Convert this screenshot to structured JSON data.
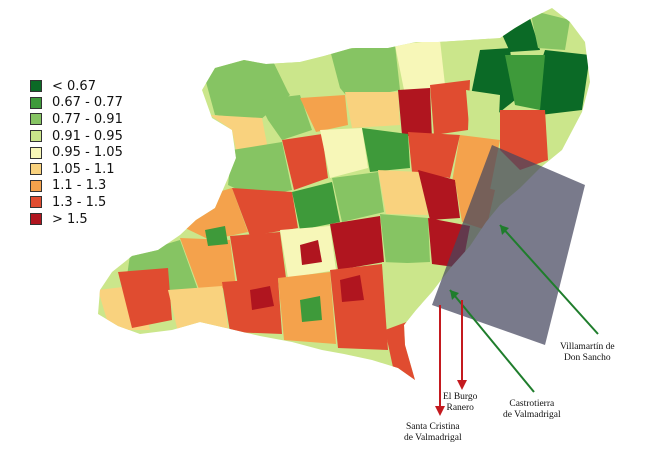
{
  "legend": {
    "items": [
      {
        "label": "< 0.67",
        "color": "#0b6a26"
      },
      {
        "label": "0.67 - 0.77",
        "color": "#3e9a3a"
      },
      {
        "label": "0.77 - 0.91",
        "color": "#86c463"
      },
      {
        "label": "0.91 - 0.95",
        "color": "#cbe68b"
      },
      {
        "label": "0.95 - 1.05",
        "color": "#f7f7b8"
      },
      {
        "label": "1.05 - 1.1",
        "color": "#f9d27e"
      },
      {
        "label": "1.1 - 1.3",
        "color": "#f4a24c"
      },
      {
        "label": "1.3 - 1.5",
        "color": "#e04c30"
      },
      {
        "label": "> 1.5",
        "color": "#b0151f"
      }
    ]
  },
  "towns": {
    "villamartin": {
      "line1": "Villamartín de",
      "line2": "Don Sancho",
      "arrow_color": "#1f7d2c"
    },
    "castrotierra": {
      "line1": "Castrotierra",
      "line2": "de Valmadrigal",
      "arrow_color": "#1f7d2c"
    },
    "el_burgo": {
      "line1": "El Burgo",
      "line2": "Ranero",
      "arrow_color": "#c41a1f"
    },
    "santa_cristina": {
      "line1": "Santa Cristina",
      "line2": "de Valmadrigal",
      "arrow_color": "#c41a1f"
    }
  }
}
